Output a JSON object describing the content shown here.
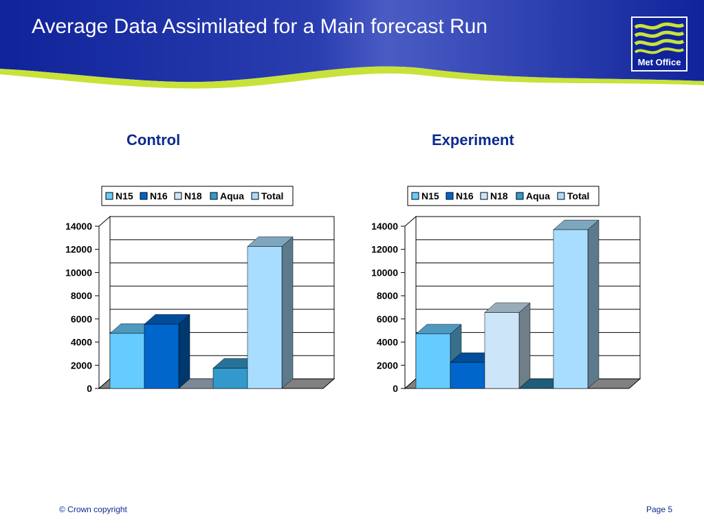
{
  "title": "Average Data Assimilated for a Main forecast Run",
  "logo": {
    "text": "Met Office"
  },
  "footer": {
    "copyright": "© Crown copyright",
    "page": "Page 5"
  },
  "colors": {
    "header_blue": "#10239a",
    "accent_green": "#c8e23a",
    "N15": "#66ccff",
    "N16": "#0066cc",
    "N18": "#cce5f8",
    "Aqua": "#3399cc",
    "Total": "#a8ddff",
    "floor": "#808080",
    "heading_text": "#0b2b8c"
  },
  "chart_data": [
    {
      "type": "bar",
      "title": "Control",
      "categories": [
        "N15",
        "N16",
        "N18",
        "Aqua",
        "Total"
      ],
      "values": [
        4750,
        5550,
        0,
        1750,
        12250
      ],
      "legend": [
        "N15",
        "N16",
        "N18",
        "Aqua",
        "Total"
      ],
      "legend_position": "top",
      "yticks": [
        "14000",
        "12000",
        "10000",
        "8000",
        "6000",
        "4000",
        "2000",
        "0"
      ],
      "ylim": [
        0,
        14000
      ],
      "grid": true
    },
    {
      "type": "bar",
      "title": "Experiment",
      "categories": [
        "N15",
        "N16",
        "N18",
        "Aqua",
        "Total"
      ],
      "values": [
        4700,
        2250,
        6550,
        0,
        13700
      ],
      "legend": [
        "N15",
        "N16",
        "N18",
        "Aqua",
        "Total"
      ],
      "legend_position": "top",
      "yticks": [
        "14000",
        "12000",
        "10000",
        "8000",
        "6000",
        "4000",
        "2000",
        "0"
      ],
      "ylim": [
        0,
        14000
      ],
      "grid": true
    }
  ]
}
